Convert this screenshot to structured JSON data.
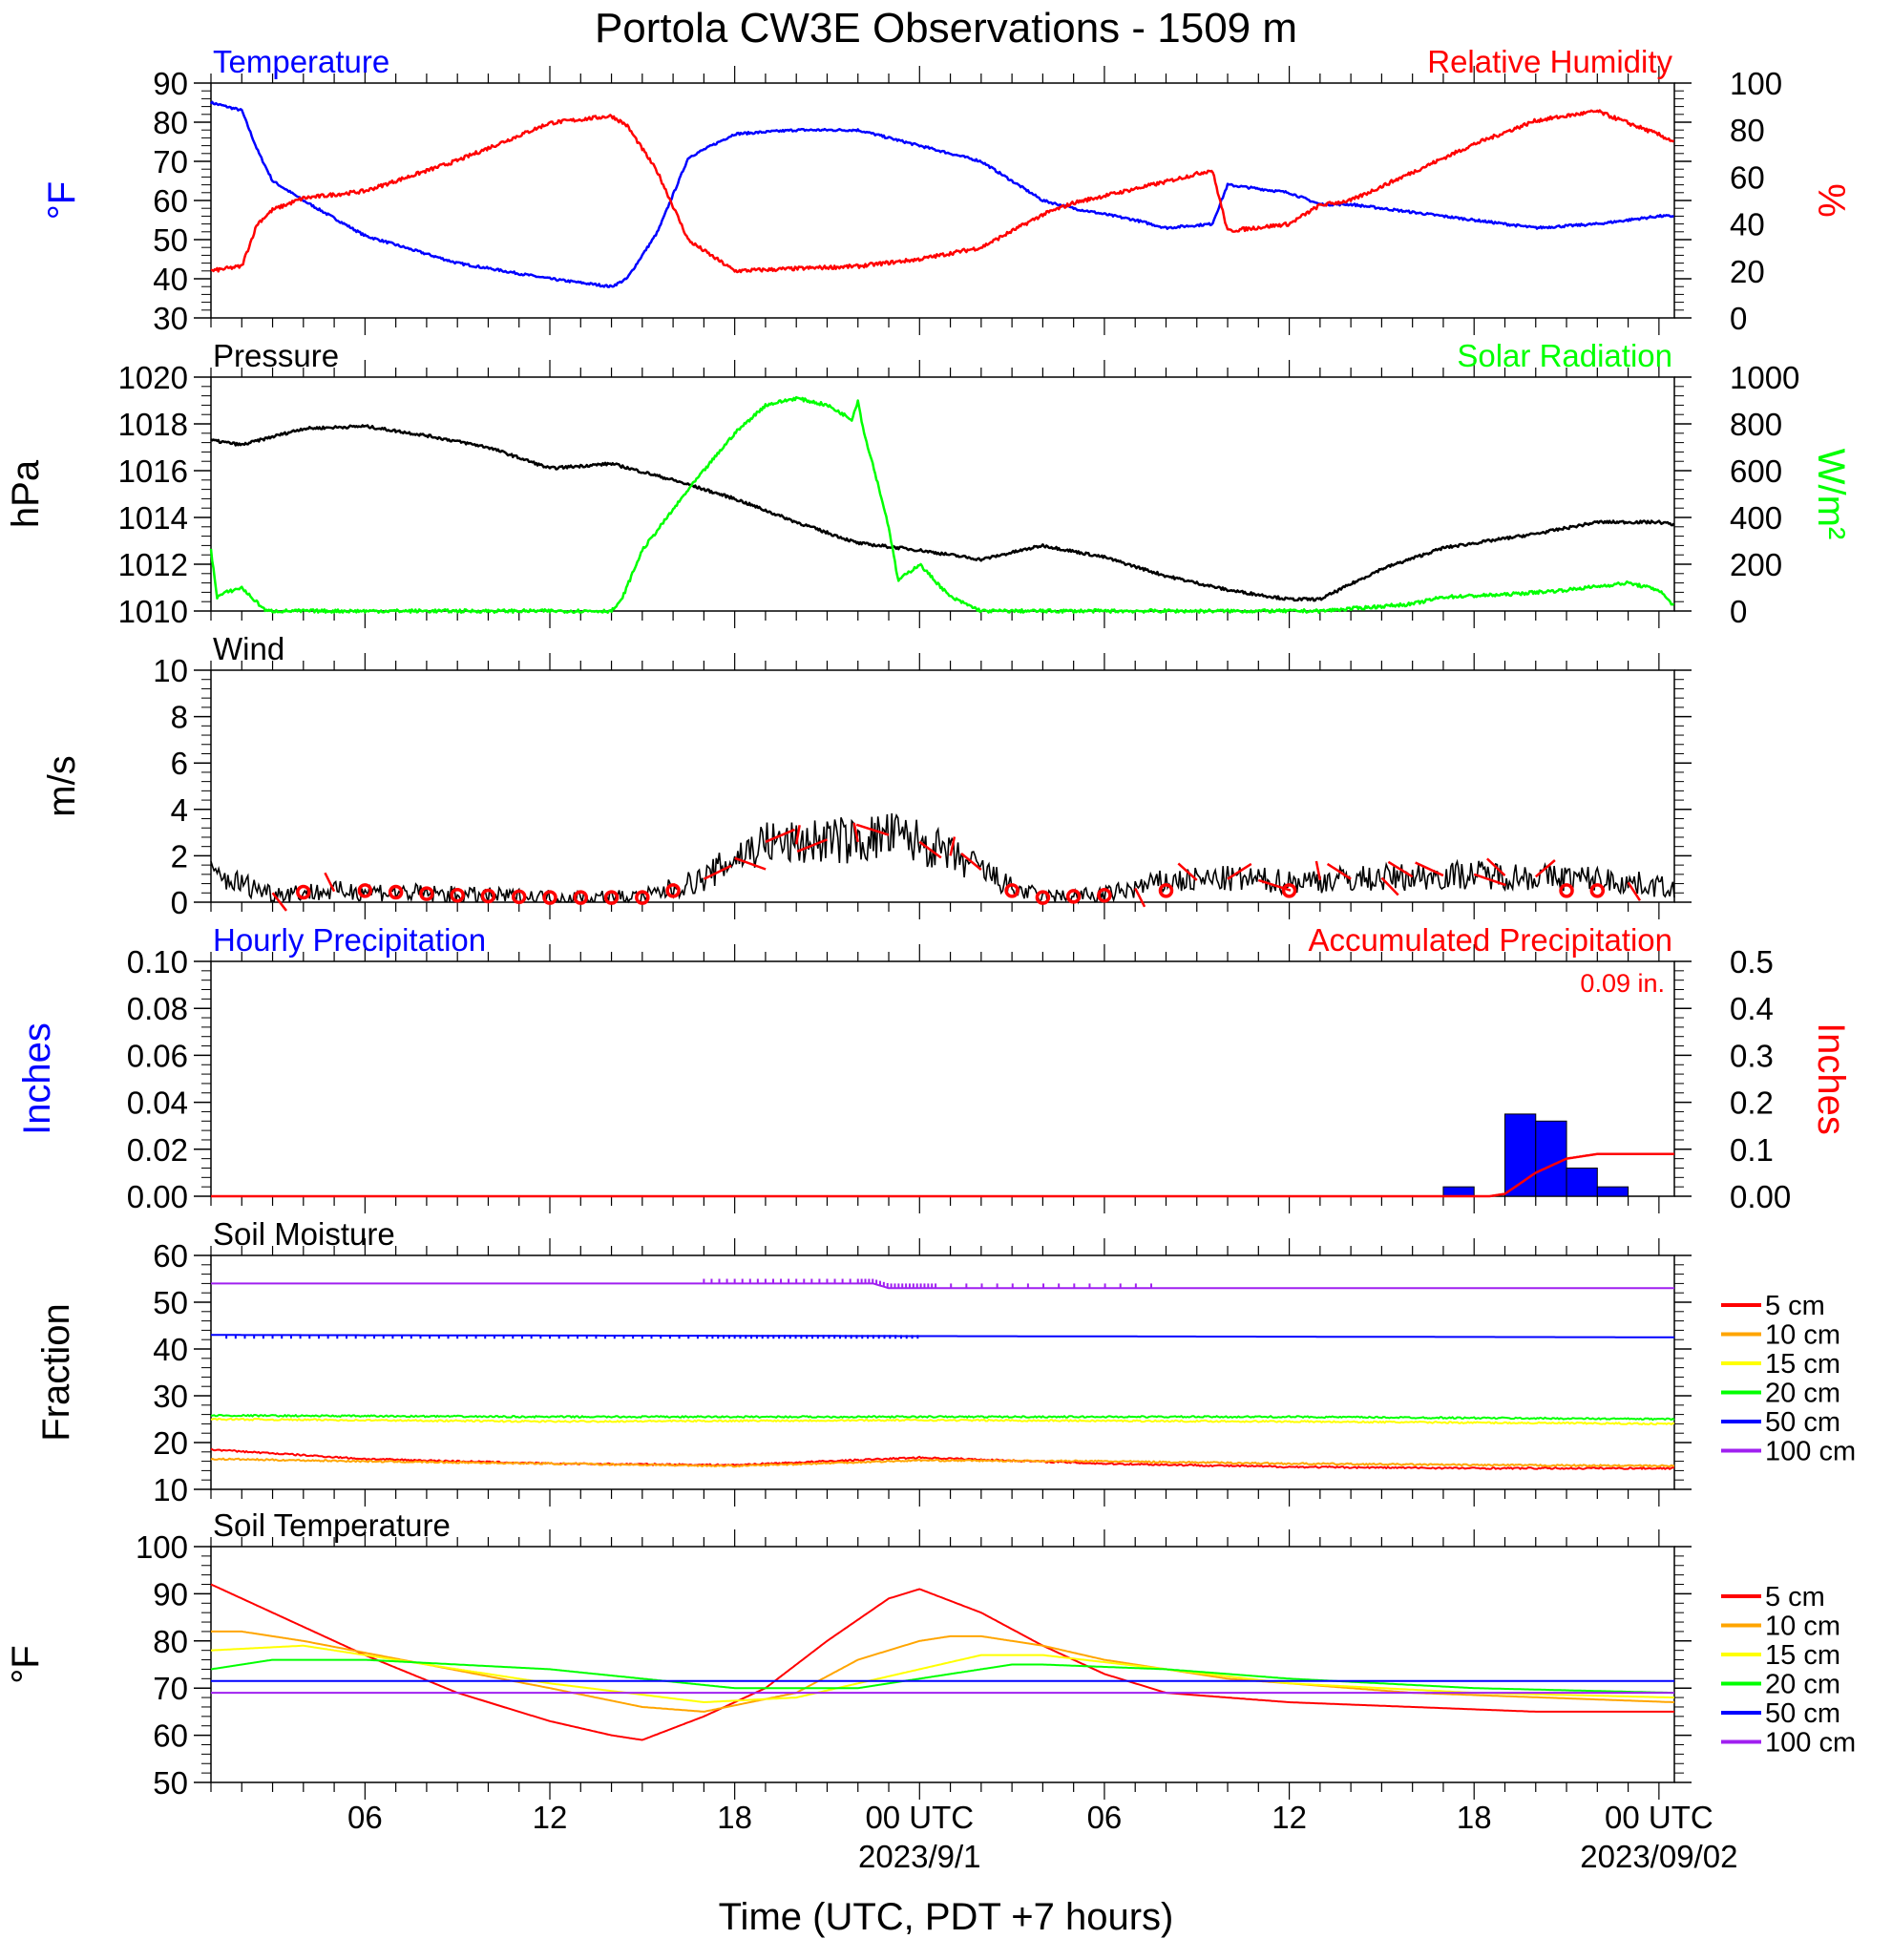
{
  "title": "Portola CW3E Observations - 1509 m",
  "x_axis": {
    "label": "Time (UTC, PDT +7 hours)",
    "ticks": [
      {
        "hour": 6,
        "label": "06",
        "date": ""
      },
      {
        "hour": 12,
        "label": "12",
        "date": ""
      },
      {
        "hour": 18,
        "label": "18",
        "date": ""
      },
      {
        "hour": 24,
        "label": "00 UTC",
        "date": "2023/9/1"
      },
      {
        "hour": 30,
        "label": "06",
        "date": ""
      },
      {
        "hour": 36,
        "label": "12",
        "date": ""
      },
      {
        "hour": 42,
        "label": "18",
        "date": ""
      },
      {
        "hour": 48,
        "label": "00 UTC",
        "date": "2023/09/02"
      }
    ],
    "range_hours": [
      1,
      48.5
    ]
  },
  "chart_data": [
    {
      "type": "line",
      "title": "Temperature",
      "title_right": "Relative Humidity",
      "ylabel": "°F",
      "ylabel_right": "%",
      "ylim": [
        30,
        90
      ],
      "ylim_right": [
        0,
        100
      ],
      "yticks": [
        "30",
        "40",
        "50",
        "60",
        "70",
        "80",
        "90"
      ],
      "yticks_right": [
        "0",
        "20",
        "40",
        "60",
        "80",
        "100"
      ],
      "x_hours": [
        1,
        2,
        2.5,
        3,
        4,
        6,
        9,
        12,
        14,
        14.5,
        15.5,
        16.5,
        18,
        20,
        22,
        24,
        26,
        28,
        29,
        31,
        32,
        33.5,
        34,
        36,
        37,
        38,
        40,
        42,
        44,
        46,
        48,
        48.5
      ],
      "series": [
        {
          "name": "Temperature",
          "axis": "left",
          "color": "#0000ff",
          "values": [
            85,
            83,
            73,
            65,
            60,
            51,
            44,
            40,
            38,
            40,
            52,
            71,
            77,
            78,
            78,
            74,
            70,
            60,
            58,
            55,
            53,
            54,
            64,
            62,
            59,
            59,
            57,
            55,
            53,
            54,
            56,
            56
          ]
        },
        {
          "name": "Relative Humidity",
          "axis": "right",
          "color": "#ff0000",
          "values": [
            20,
            22,
            40,
            46,
            51,
            54,
            67,
            83,
            86,
            82,
            62,
            33,
            20,
            21,
            22,
            25,
            30,
            44,
            49,
            55,
            58,
            63,
            37,
            40,
            48,
            50,
            62,
            74,
            84,
            88,
            78,
            75
          ]
        }
      ]
    },
    {
      "type": "line",
      "title": "Pressure",
      "title_right": "Solar Radiation",
      "ylabel": "hPa",
      "ylabel_right": "W/m²",
      "ylim": [
        1010,
        1020
      ],
      "ylim_right": [
        0,
        1000
      ],
      "yticks": [
        "1010",
        "1012",
        "1014",
        "1016",
        "1018",
        "1020"
      ],
      "yticks_right": [
        "0",
        "200",
        "400",
        "600",
        "800",
        "1000"
      ],
      "series": [
        {
          "name": "Pressure",
          "axis": "left",
          "color": "#000000",
          "x_hours": [
            1,
            2,
            4,
            6,
            8,
            10,
            12,
            14,
            16,
            18,
            20,
            22,
            24,
            26,
            28,
            30,
            32,
            34,
            36,
            37,
            39,
            41,
            44,
            46,
            48,
            48.5
          ],
          "values": [
            1017.3,
            1017.1,
            1017.8,
            1017.9,
            1017.5,
            1017.0,
            1016.1,
            1016.3,
            1015.6,
            1014.8,
            1013.8,
            1012.9,
            1012.6,
            1012.2,
            1012.8,
            1012.3,
            1011.5,
            1010.9,
            1010.5,
            1010.5,
            1011.8,
            1012.7,
            1013.3,
            1013.8,
            1013.8,
            1013.7
          ]
        },
        {
          "name": "Solar Radiation",
          "axis": "right",
          "color": "#00ff00",
          "x_hours": [
            1,
            1.2,
            1.5,
            2,
            2.3,
            2.8,
            14,
            14.3,
            15,
            16.5,
            18,
            19,
            20,
            21,
            21.8,
            22,
            22.2,
            22.5,
            23,
            23.3,
            24,
            24.5,
            25,
            26,
            37,
            40,
            41,
            43,
            45,
            47,
            48,
            48.5
          ],
          "values": [
            260,
            60,
            80,
            100,
            60,
            0,
            0,
            40,
            260,
            520,
            760,
            880,
            910,
            880,
            820,
            900,
            760,
            620,
            360,
            130,
            200,
            130,
            60,
            0,
            0,
            30,
            60,
            70,
            90,
            120,
            90,
            20
          ]
        }
      ]
    },
    {
      "type": "line",
      "title": "Wind",
      "ylabel": "m/s",
      "ylim": [
        0,
        10
      ],
      "yticks": [
        "0",
        "2",
        "4",
        "6",
        "8",
        "10"
      ],
      "series": [
        {
          "name": "Wind speed",
          "color": "#000000",
          "x_hours": [
            1,
            3,
            6,
            9,
            12,
            15,
            17,
            18,
            19,
            20,
            21,
            22,
            23,
            24,
            25,
            26,
            27,
            28,
            30,
            32,
            34,
            36,
            38,
            40,
            42,
            44,
            46,
            48,
            48.5
          ],
          "values": [
            1.2,
            0.4,
            0.5,
            0.3,
            0.2,
            0.2,
            1.0,
            1.9,
            2.6,
            2.5,
            2.7,
            2.6,
            2.9,
            2.6,
            2.0,
            1.4,
            0.6,
            0.2,
            0.3,
            0.9,
            1.0,
            0.9,
            1.0,
            1.1,
            1.2,
            1.1,
            1.0,
            0.7,
            0.6
          ]
        }
      ],
      "barbs": {
        "color": "#ff0000",
        "calm_hours": [
          4,
          6,
          7,
          8,
          9,
          10,
          11,
          12,
          13,
          14,
          15,
          16,
          27,
          28,
          29,
          30,
          32,
          36,
          45,
          46
        ],
        "barb_hours": [
          3,
          5,
          17,
          18,
          19,
          20,
          21,
          22,
          23,
          24,
          25,
          26,
          31,
          33,
          34,
          35,
          37,
          38,
          39,
          40,
          41,
          42,
          43,
          44,
          47
        ]
      }
    },
    {
      "type": "bar",
      "title": "Hourly Precipitation",
      "title_right": "Accumulated Precipitation",
      "annotation": "0.09 in.",
      "ylabel": "Inches",
      "ylabel_right": "Inches",
      "ylim": [
        0,
        0.1
      ],
      "ylim_right": [
        0,
        0.5
      ],
      "yticks": [
        "0.00",
        "0.02",
        "0.04",
        "0.06",
        "0.08",
        "0.10"
      ],
      "yticks_right": [
        "0.00",
        "0.1",
        "0.2",
        "0.3",
        "0.4",
        "0.5"
      ],
      "bars": {
        "name": "Hourly Precipitation",
        "color": "#0000ff",
        "x_hours": [
          41.5,
          43.5,
          44.5,
          45.5,
          46.5
        ],
        "values": [
          0.004,
          0.035,
          0.032,
          0.012,
          0.004
        ]
      },
      "accumulated": {
        "name": "Accumulated Precipitation",
        "color": "#ff0000",
        "x_hours": [
          1,
          42.5,
          43,
          44,
          45,
          46,
          48.5
        ],
        "values": [
          0,
          0,
          0.005,
          0.05,
          0.08,
          0.09,
          0.09
        ]
      }
    },
    {
      "type": "line",
      "title": "Soil Moisture",
      "ylabel": "Fraction",
      "ylim": [
        10,
        60
      ],
      "yticks": [
        "10",
        "20",
        "30",
        "40",
        "50",
        "60"
      ],
      "legend": "right",
      "series": [
        {
          "name": "5 cm",
          "color": "#ff0000",
          "x_hours": [
            1,
            6,
            12,
            18,
            24,
            30,
            36,
            42,
            48.5
          ],
          "values": [
            18.5,
            16.5,
            15.5,
            15.2,
            16.8,
            15.5,
            14.8,
            14.5,
            14.5
          ]
        },
        {
          "name": "10 cm",
          "color": "#ffa500",
          "x_hours": [
            1,
            6,
            12,
            18,
            24,
            30,
            36,
            42,
            48.5
          ],
          "values": [
            16.5,
            16.0,
            15.5,
            15.0,
            16.2,
            16.0,
            15.5,
            15.2,
            15.0
          ]
        },
        {
          "name": "15 cm",
          "color": "#ffff00",
          "x_hours": [
            1,
            12,
            24,
            36,
            48.5
          ],
          "values": [
            25.0,
            24.5,
            24.8,
            24.5,
            24.0
          ]
        },
        {
          "name": "20 cm",
          "color": "#00ff00",
          "x_hours": [
            1,
            12,
            24,
            36,
            48.5
          ],
          "values": [
            25.8,
            25.5,
            25.5,
            25.5,
            25.0
          ]
        },
        {
          "name": "50 cm",
          "color": "#0000ff",
          "x_hours": [
            1,
            48.5
          ],
          "values": [
            43.0,
            42.5
          ]
        },
        {
          "name": "100 cm",
          "color": "#a020f0",
          "x_hours": [
            1,
            22.5,
            23,
            48.5
          ],
          "values": [
            54.0,
            54.0,
            53.0,
            53.0
          ]
        }
      ]
    },
    {
      "type": "line",
      "title": "Soil Temperature",
      "ylabel": "°F",
      "ylim": [
        50,
        100
      ],
      "yticks": [
        "50",
        "60",
        "70",
        "80",
        "90",
        "100"
      ],
      "legend": "right",
      "series": [
        {
          "name": "5 cm",
          "color": "#ff0000",
          "x_hours": [
            1,
            3,
            6,
            9,
            12,
            14,
            15,
            17,
            19,
            21,
            23,
            24,
            26,
            28,
            30,
            32,
            36,
            40,
            44,
            48.5
          ],
          "values": [
            92,
            86,
            77,
            69,
            63,
            60,
            59,
            64,
            70,
            80,
            89,
            91,
            86,
            79,
            73,
            69,
            67,
            66,
            65,
            65
          ]
        },
        {
          "name": "10 cm",
          "color": "#ffa500",
          "x_hours": [
            1,
            2,
            4,
            8,
            12,
            15,
            17,
            20,
            22,
            24,
            25,
            26,
            28,
            30,
            34,
            40,
            48.5
          ],
          "values": [
            82,
            82,
            80,
            75,
            70,
            66,
            65,
            69,
            76,
            80,
            81,
            81,
            79,
            76,
            72,
            69,
            67
          ]
        },
        {
          "name": "15 cm",
          "color": "#ffff00",
          "x_hours": [
            1,
            4,
            8,
            12,
            17,
            20,
            24,
            26,
            28,
            32,
            36,
            42,
            48.5
          ],
          "values": [
            78,
            79,
            75,
            71,
            67,
            68,
            74,
            77,
            77,
            74,
            71,
            69,
            68
          ]
        },
        {
          "name": "20 cm",
          "color": "#00ff00",
          "x_hours": [
            1,
            3,
            6,
            12,
            18,
            22,
            24,
            27,
            28,
            32,
            36,
            42,
            48.5
          ],
          "values": [
            74,
            76,
            76,
            74,
            70,
            70,
            72,
            75,
            75,
            74,
            72,
            70,
            69
          ]
        },
        {
          "name": "50 cm",
          "color": "#0000ff",
          "x_hours": [
            1,
            48.5
          ],
          "values": [
            71.5,
            71.5
          ]
        },
        {
          "name": "100 cm",
          "color": "#a020f0",
          "x_hours": [
            1,
            48.5
          ],
          "values": [
            69,
            69
          ]
        }
      ]
    }
  ]
}
